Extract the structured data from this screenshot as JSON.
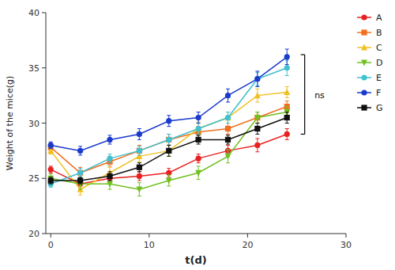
{
  "chart_data": {
    "type": "line",
    "x_label": "t(d)",
    "y_label": "Weight of the mice(g)",
    "x": [
      0,
      3,
      6,
      9,
      12,
      15,
      18,
      21,
      24
    ],
    "series": [
      {
        "name": "A",
        "color": "#e82020",
        "marker": "circle",
        "values": [
          25.8,
          24.5,
          25.0,
          25.2,
          25.5,
          26.8,
          27.5,
          28.0,
          29.0
        ],
        "errors": [
          0.3,
          0.4,
          0.4,
          0.4,
          0.4,
          0.4,
          0.5,
          0.6,
          0.5
        ]
      },
      {
        "name": "B",
        "color": "#f07020",
        "marker": "square",
        "values": [
          27.8,
          25.5,
          26.5,
          27.5,
          28.5,
          29.2,
          29.5,
          30.5,
          31.5
        ],
        "errors": [
          0.4,
          0.5,
          0.4,
          0.5,
          0.5,
          0.5,
          0.5,
          0.5,
          0.5
        ]
      },
      {
        "name": "C",
        "color": "#f0c020",
        "marker": "triangle-up",
        "values": [
          27.5,
          24.0,
          25.5,
          27.0,
          27.5,
          29.5,
          30.5,
          32.5,
          32.8
        ],
        "errors": [
          0.3,
          0.5,
          0.5,
          0.5,
          0.5,
          0.6,
          0.5,
          0.6,
          0.5
        ]
      },
      {
        "name": "D",
        "color": "#70c020",
        "marker": "triangle-down",
        "values": [
          25.0,
          24.5,
          24.5,
          24.0,
          24.8,
          25.5,
          27.0,
          30.5,
          31.0
        ],
        "errors": [
          0.4,
          0.5,
          0.5,
          0.6,
          0.5,
          0.6,
          0.6,
          0.5,
          0.5
        ]
      },
      {
        "name": "E",
        "color": "#40c0d0",
        "marker": "circle",
        "values": [
          24.5,
          25.5,
          26.8,
          27.5,
          28.5,
          29.5,
          30.5,
          34.0,
          35.0
        ],
        "errors": [
          0.3,
          0.4,
          0.4,
          0.4,
          0.5,
          0.5,
          0.5,
          0.6,
          0.7
        ]
      },
      {
        "name": "F",
        "color": "#1a3acc",
        "marker": "circle",
        "values": [
          28.0,
          27.5,
          28.5,
          29.0,
          30.2,
          30.5,
          32.5,
          34.0,
          36.0
        ],
        "errors": [
          0.3,
          0.4,
          0.4,
          0.5,
          0.5,
          0.5,
          0.6,
          0.7,
          0.7
        ]
      },
      {
        "name": "G",
        "color": "#101010",
        "marker": "square",
        "values": [
          24.8,
          24.8,
          25.2,
          26.0,
          27.5,
          28.5,
          28.5,
          29.5,
          30.5
        ],
        "errors": [
          0.3,
          0.3,
          0.4,
          0.4,
          0.5,
          0.4,
          0.4,
          0.5,
          0.5
        ]
      }
    ],
    "xlim": [
      -0.5,
      30
    ],
    "ylim": [
      20,
      40
    ],
    "xticks": [
      0,
      10,
      20,
      30
    ],
    "yticks": [
      20,
      25,
      30,
      35,
      40
    ],
    "grid": false,
    "legend": "right",
    "annotations": [
      {
        "text": "ns",
        "x": 26.8,
        "y": 32.5,
        "bracket": {
          "x": 25.8,
          "y_top": 36.2,
          "y_bottom": 29.0
        }
      }
    ]
  }
}
